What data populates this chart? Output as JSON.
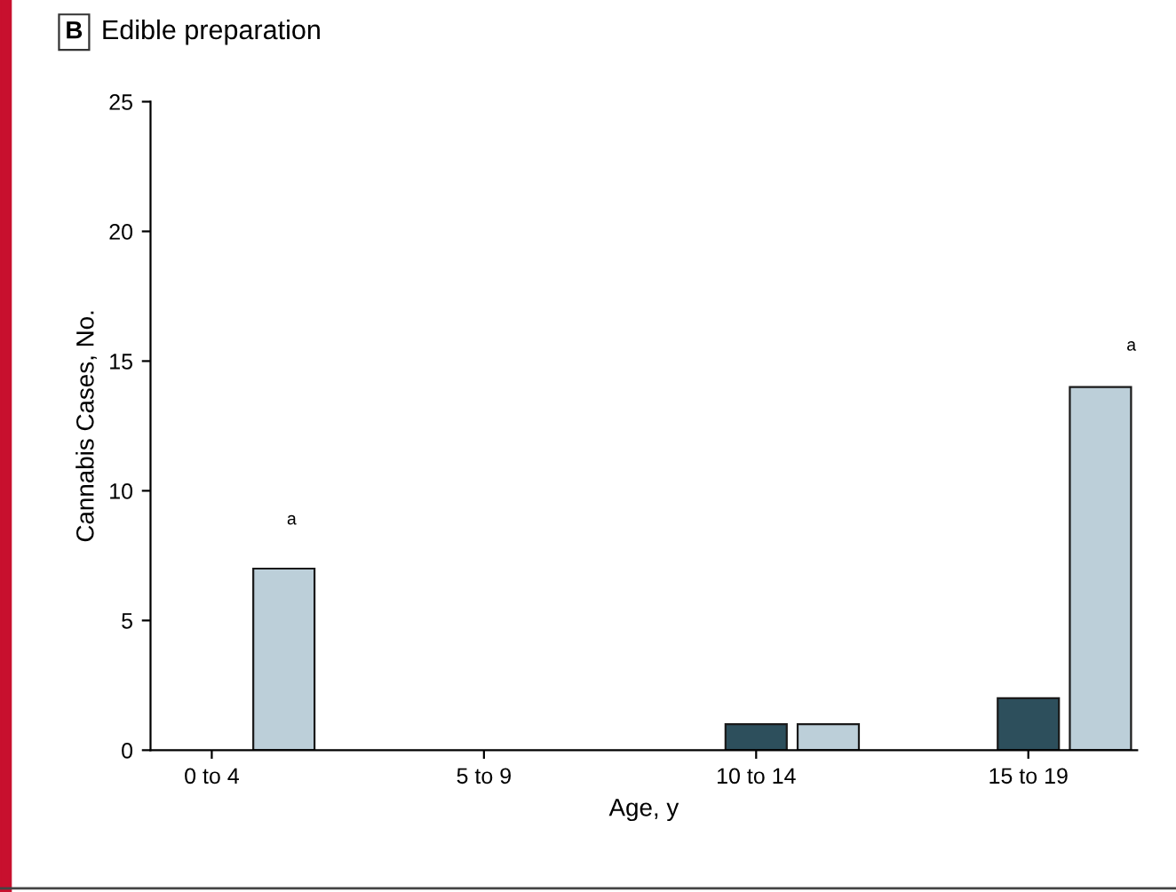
{
  "chart_data": {
    "type": "bar",
    "title": "Edible preparation",
    "categories": [
      "0 to 4",
      "5 to 9",
      "10 to 14",
      "15 to 19"
    ],
    "series": [
      {
        "color": "#2d4f5c",
        "values": [
          0,
          0,
          1,
          2
        ]
      },
      {
        "color": "#bccfd9",
        "values": [
          7,
          0,
          1,
          14
        ]
      }
    ],
    "xlabel": "Age, y",
    "ylabel": "Cannabis Cases, No.",
    "ylim": [
      0,
      25
    ],
    "yticks": [
      0,
      5,
      10,
      15,
      20,
      25
    ],
    "grid": false,
    "legend": false,
    "annotations": [
      "B",
      "a",
      "a"
    ]
  }
}
